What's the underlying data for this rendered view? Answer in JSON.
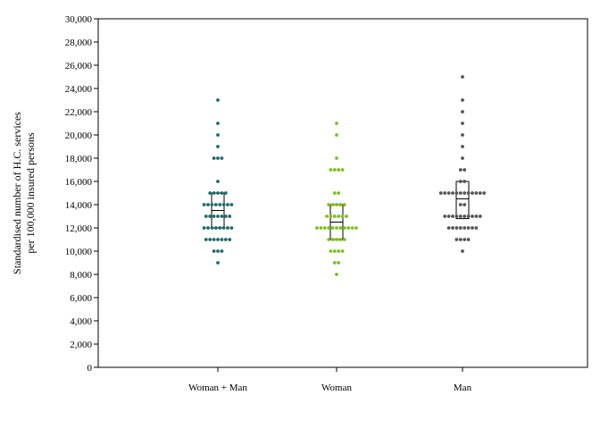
{
  "chart_data": {
    "type": "scatter",
    "subtype": "dot strip plot with median and interquartile box",
    "ylabel_lines": [
      "Standardised number of H.C. services",
      "per 100,000 insured persons"
    ],
    "categories": [
      "Woman + Man",
      "Woman",
      "Man"
    ],
    "ylim": [
      0,
      30000
    ],
    "yticks": [
      0,
      2000,
      4000,
      6000,
      8000,
      10000,
      12000,
      14000,
      16000,
      18000,
      20000,
      22000,
      24000,
      26000,
      28000,
      30000
    ],
    "ytick_labels": [
      "0",
      "2,000",
      "4,000",
      "6,000",
      "8,000",
      "10,000",
      "12,000",
      "14,000",
      "16,000",
      "18,000",
      "20,000",
      "22,000",
      "24,000",
      "26,000",
      "28,000",
      "30,000"
    ],
    "grid": false,
    "series": [
      {
        "category": "Woman + Man",
        "color": "#1f6b6b",
        "values": [
          9000,
          10000,
          10000,
          10000,
          11000,
          11000,
          11000,
          11000,
          11000,
          11000,
          11000,
          12000,
          12000,
          12000,
          12000,
          12000,
          12000,
          12000,
          12000,
          13000,
          13000,
          13000,
          13000,
          13000,
          13000,
          13000,
          14000,
          14000,
          14000,
          14000,
          14000,
          14000,
          14000,
          14000,
          15000,
          15000,
          15000,
          15000,
          15000,
          16000,
          18000,
          18000,
          18000,
          19000,
          20000,
          21000,
          23000
        ],
        "box": {
          "q1": 12000,
          "median": 13500,
          "q3": 15000
        }
      },
      {
        "category": "Woman",
        "color": "#7fbf1f",
        "values": [
          8000,
          9000,
          9000,
          10000,
          10000,
          10000,
          10000,
          11000,
          11000,
          11000,
          11000,
          11000,
          12000,
          12000,
          12000,
          12000,
          12000,
          12000,
          12000,
          12000,
          12000,
          12000,
          12000,
          13000,
          13000,
          13000,
          13000,
          13000,
          13000,
          14000,
          14000,
          14000,
          14000,
          14000,
          15000,
          15000,
          17000,
          17000,
          17000,
          17000,
          18000,
          20000,
          21000
        ],
        "box": {
          "q1": 11000,
          "median": 12500,
          "q3": 14000
        }
      },
      {
        "category": "Man",
        "color": "#555555",
        "values": [
          10000,
          11000,
          11000,
          11000,
          11000,
          12000,
          12000,
          12000,
          12000,
          12000,
          12000,
          12000,
          12000,
          13000,
          13000,
          13000,
          13000,
          13000,
          13000,
          13000,
          13000,
          13000,
          13000,
          14000,
          14000,
          15000,
          15000,
          15000,
          15000,
          15000,
          15000,
          15000,
          15000,
          15000,
          15000,
          15000,
          15000,
          16000,
          16000,
          17000,
          17000,
          18000,
          19000,
          20000,
          21000,
          22000,
          23000,
          25000
        ],
        "box": {
          "q1": 12800,
          "median": 14500,
          "q3": 16000
        }
      }
    ]
  }
}
